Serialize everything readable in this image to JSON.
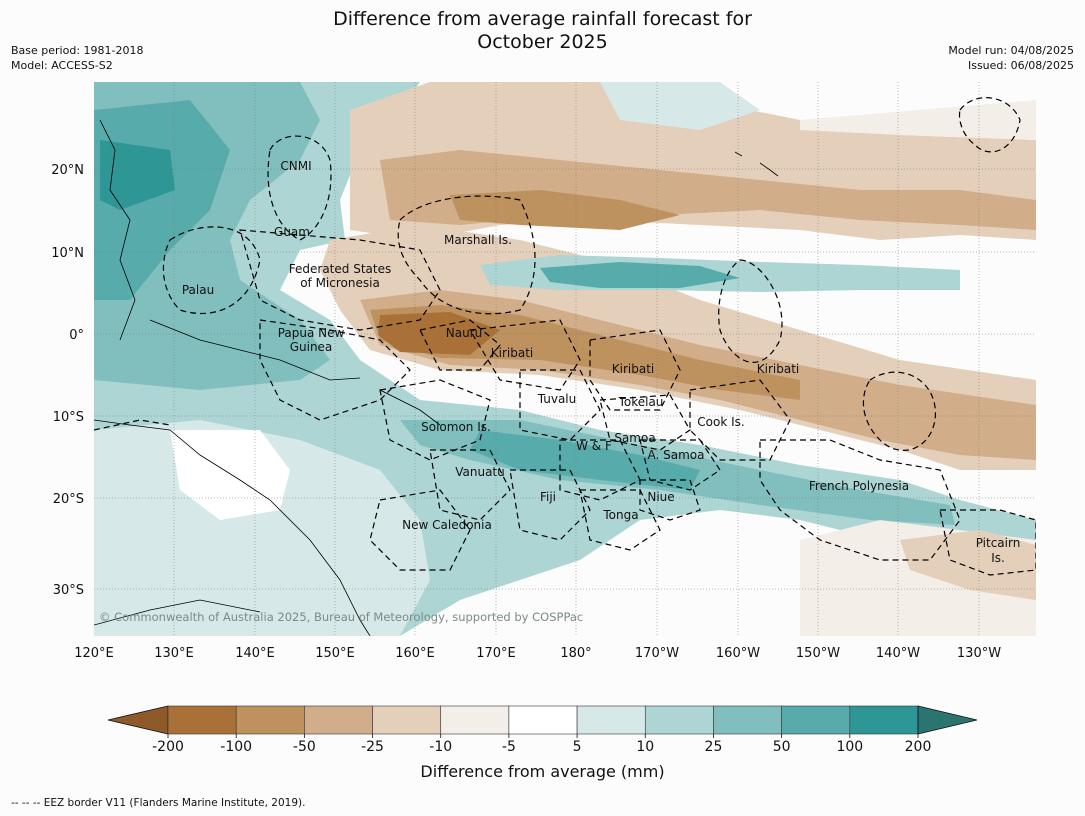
{
  "header": {
    "title_line1": "Difference from average rainfall forecast for",
    "title_line2": "October 2025",
    "base_period": "Base period: 1981-2018",
    "model": "Model: ACCESS-S2",
    "model_run": "Model run: 04/08/2025",
    "issued": "Issued: 06/08/2025"
  },
  "map": {
    "lon_ticks": [
      "120°E",
      "130°E",
      "140°E",
      "150°E",
      "160°E",
      "170°E",
      "180°",
      "170°W",
      "160°W",
      "150°W",
      "140°W",
      "130°W"
    ],
    "lat_ticks": [
      "20°N",
      "10°N",
      "0°",
      "10°S",
      "20°S",
      "30°S"
    ],
    "labels": [
      {
        "text": "CNMI"
      },
      {
        "text": "Guam"
      },
      {
        "text": "Marshall Is."
      },
      {
        "text": "Federated States"
      },
      {
        "text": "of Micronesia"
      },
      {
        "text": "Palau"
      },
      {
        "text": "Papua New"
      },
      {
        "text": "Guinea"
      },
      {
        "text": "Nauru"
      },
      {
        "text": "Kiribati"
      },
      {
        "text": "Kiribati"
      },
      {
        "text": "Kiribati"
      },
      {
        "text": "Tuvalu"
      },
      {
        "text": "Tokelau"
      },
      {
        "text": "Cook Is."
      },
      {
        "text": "Solomon Is."
      },
      {
        "text": "Samoa"
      },
      {
        "text": "W & F"
      },
      {
        "text": "A. Samoa"
      },
      {
        "text": "Vanuatu"
      },
      {
        "text": "Fiji"
      },
      {
        "text": "Niue"
      },
      {
        "text": "French Polynesia"
      },
      {
        "text": "Tonga"
      },
      {
        "text": "New Caledonia"
      },
      {
        "text": "Pitcairn"
      },
      {
        "text": "Is."
      }
    ],
    "copyright": "© Commonwealth of Australia 2025, Bureau of Meteorology, supported by COSPPac"
  },
  "colorbar": {
    "ticks": [
      "-200",
      "-100",
      "-50",
      "-25",
      "-10",
      "-5",
      "5",
      "10",
      "25",
      "50",
      "100",
      "200"
    ],
    "colors": [
      "#a97138",
      "#be925f",
      "#d1ad8a",
      "#e4cfbb",
      "#f3eee7",
      "#ffffff",
      "#d6e9e8",
      "#acd5d4",
      "#81bfbf",
      "#58abab",
      "#2f9696"
    ],
    "under_color": "#8d5a2b",
    "over_color": "#2c7470",
    "label": "Difference from average (mm)"
  },
  "footnote": "--  --  -- EEZ border V11 (Flanders Marine Institute, 2019)."
}
